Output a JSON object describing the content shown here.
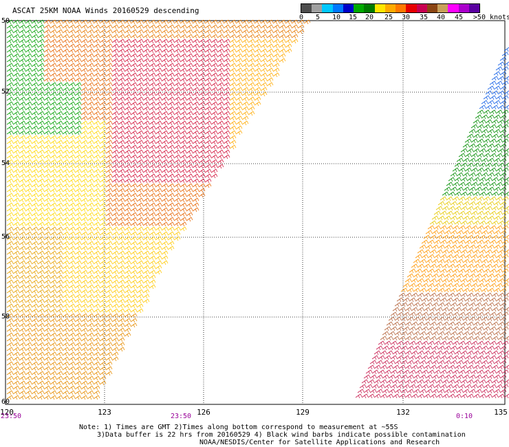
{
  "title": "ASCAT 25KM NOAA Winds 20160529 descending",
  "colorbar": {
    "colors": [
      "#4d4d4d",
      "#a0a0a0",
      "#00c8ff",
      "#0078ff",
      "#0000c8",
      "#00aa00",
      "#007a00",
      "#ffe600",
      "#ffaa00",
      "#ff7800",
      "#e60000",
      "#c80050",
      "#8b4513",
      "#c8a05a",
      "#ff00ff",
      "#aa00cc",
      "#5a00a0"
    ],
    "labels": [
      "0",
      "5",
      "10",
      "15",
      "20",
      "25",
      "30",
      "35",
      "40",
      "45",
      ">50 knots"
    ]
  },
  "lat_labels": [
    "50",
    "52",
    "54",
    "56",
    "58",
    "60"
  ],
  "lon_labels": [
    "120",
    "123",
    "126",
    "129",
    "132",
    "135"
  ],
  "time_labels": [
    "23:50",
    "23:50",
    "0:10"
  ],
  "notes": {
    "line1": "Note: 1) Times are GMT 2)Times along bottom correspond to measurement at ~55S",
    "line2": "3)Data buffer is 22 hrs from 20160529 4) Black wind barbs indicate possible contamination",
    "line3": "NOAA/NESDIS/Center for Satellite Applications and Research"
  }
}
